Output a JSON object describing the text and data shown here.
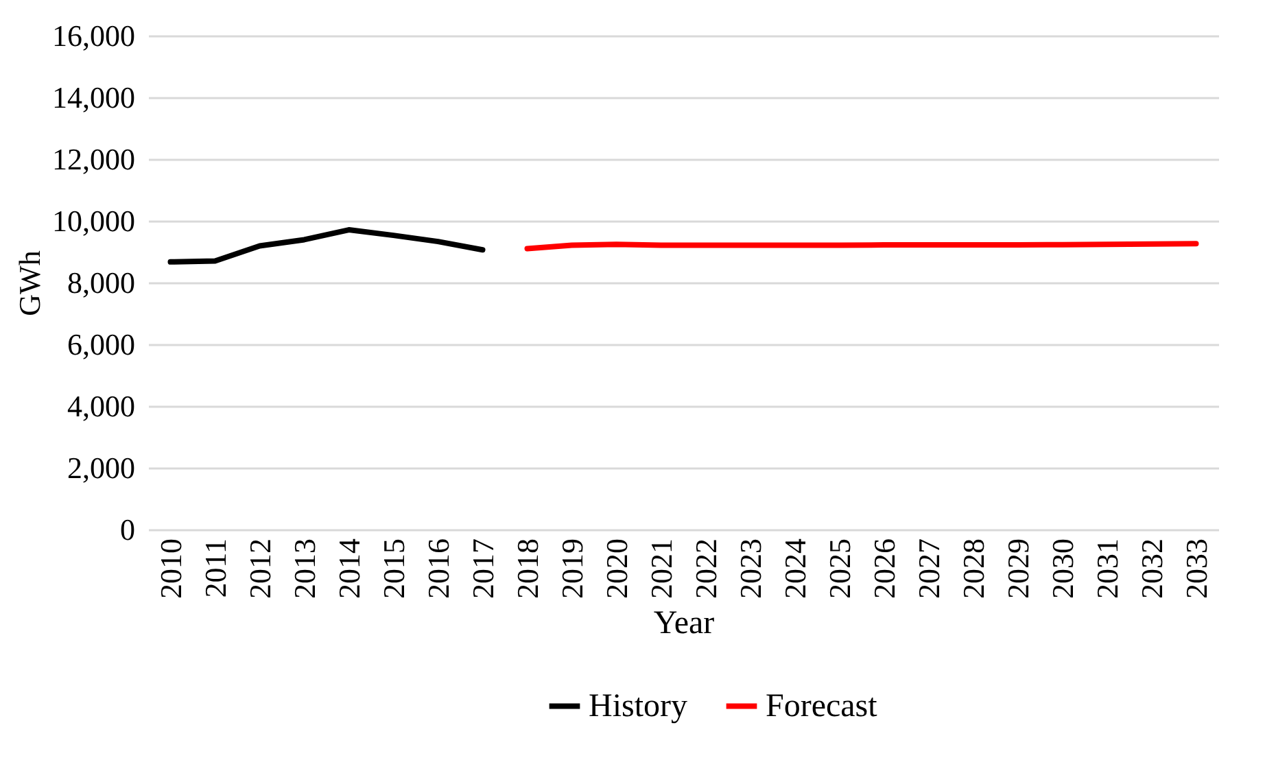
{
  "chart_data": {
    "type": "line",
    "xlabel": "Year",
    "ylabel": "GWh",
    "categories": [
      "2010",
      "2011",
      "2012",
      "2013",
      "2014",
      "2015",
      "2016",
      "2017",
      "2018",
      "2019",
      "2020",
      "2021",
      "2022",
      "2023",
      "2024",
      "2025",
      "2026",
      "2027",
      "2028",
      "2029",
      "2030",
      "2031",
      "2032",
      "2033"
    ],
    "series": [
      {
        "name": "History",
        "color": "#000000",
        "values": [
          8670,
          8700,
          9190,
          9390,
          9710,
          9530,
          9330,
          9060,
          null,
          null,
          null,
          null,
          null,
          null,
          null,
          null,
          null,
          null,
          null,
          null,
          null,
          null,
          null,
          null
        ]
      },
      {
        "name": "Forecast",
        "color": "#ff0000",
        "values": [
          null,
          null,
          null,
          null,
          null,
          null,
          null,
          null,
          9100,
          9210,
          9240,
          9210,
          9210,
          9210,
          9210,
          9210,
          9220,
          9220,
          9220,
          9220,
          9230,
          9240,
          9250,
          9260
        ]
      }
    ],
    "ylim": [
      0,
      16000
    ],
    "yticks": [
      0,
      {
        "value": 2000,
        "label": "2,000"
      },
      {
        "value": 4000,
        "label": "4,000"
      },
      {
        "value": 6000,
        "label": "6,000"
      },
      {
        "value": 8000,
        "label": "8,000"
      },
      {
        "value": 10000,
        "label": "10,000"
      },
      {
        "value": 12000,
        "label": "12,000"
      },
      {
        "value": 14000,
        "label": "14,000"
      },
      {
        "value": 16000,
        "label": "16,000"
      }
    ],
    "grid": "y",
    "legend": "bottom",
    "marker": "none",
    "line_style": "solid"
  }
}
